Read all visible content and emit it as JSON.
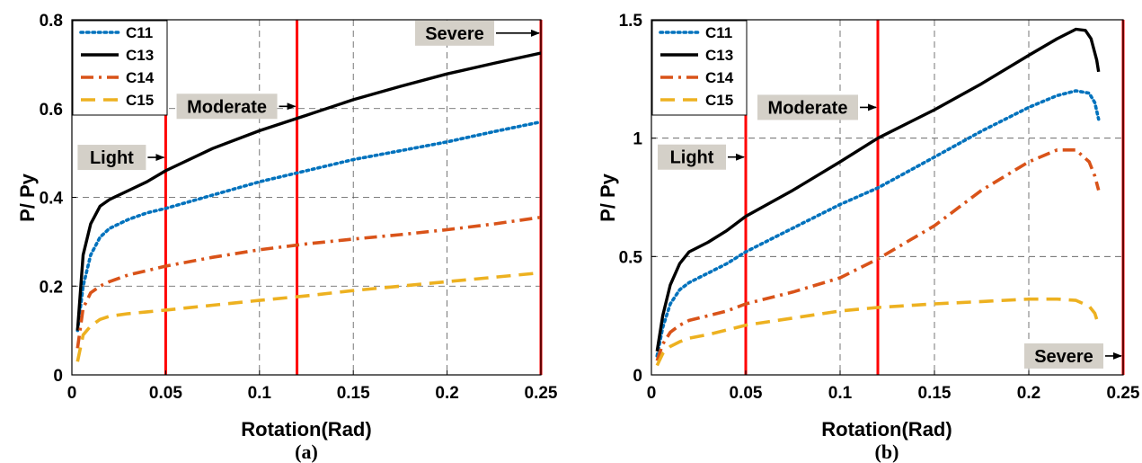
{
  "colors": {
    "C11": "#0072BD",
    "C13": "#000000",
    "C14": "#D95319",
    "C15": "#EDB120",
    "limit": "#FF0000",
    "annot_bg": "#D4D0C8",
    "grid": "#555555"
  },
  "chart_data": [
    {
      "type": "line",
      "caption": "(a)",
      "xlabel": "Rotation(Rad)",
      "ylabel": "P/ Py",
      "xlim": [
        0,
        0.25
      ],
      "ylim": [
        0,
        0.8
      ],
      "xticks": [
        0,
        0.05,
        0.1,
        0.15,
        0.2,
        0.25
      ],
      "xtick_labels": [
        "0",
        "0.05",
        "0.1",
        "0.15",
        "0.2",
        "0.25"
      ],
      "yticks": [
        0,
        0.2,
        0.4,
        0.6,
        0.8
      ],
      "ytick_labels": [
        "0",
        "0.2",
        "0.4",
        "0.6",
        "0.8"
      ],
      "grid": true,
      "legend": "top-left",
      "series": [
        {
          "name": "C11",
          "style": "dotted",
          "x": [
            0.003,
            0.006,
            0.01,
            0.015,
            0.02,
            0.03,
            0.04,
            0.05,
            0.075,
            0.1,
            0.125,
            0.15,
            0.175,
            0.2,
            0.225,
            0.25
          ],
          "y": [
            0.1,
            0.2,
            0.27,
            0.31,
            0.33,
            0.35,
            0.365,
            0.375,
            0.405,
            0.435,
            0.46,
            0.485,
            0.505,
            0.525,
            0.548,
            0.57
          ]
        },
        {
          "name": "C13",
          "style": "solid",
          "x": [
            0.003,
            0.006,
            0.01,
            0.015,
            0.02,
            0.03,
            0.04,
            0.05,
            0.075,
            0.1,
            0.125,
            0.15,
            0.175,
            0.2,
            0.225,
            0.25
          ],
          "y": [
            0.1,
            0.27,
            0.34,
            0.38,
            0.395,
            0.415,
            0.435,
            0.46,
            0.51,
            0.55,
            0.585,
            0.62,
            0.65,
            0.678,
            0.702,
            0.725
          ]
        },
        {
          "name": "C14",
          "style": "dashdot",
          "x": [
            0.003,
            0.006,
            0.01,
            0.015,
            0.02,
            0.03,
            0.04,
            0.05,
            0.075,
            0.1,
            0.125,
            0.15,
            0.175,
            0.2,
            0.225,
            0.25
          ],
          "y": [
            0.06,
            0.15,
            0.185,
            0.2,
            0.21,
            0.225,
            0.235,
            0.245,
            0.265,
            0.282,
            0.295,
            0.306,
            0.316,
            0.327,
            0.34,
            0.355
          ]
        },
        {
          "name": "C15",
          "style": "dashed",
          "x": [
            0.003,
            0.006,
            0.01,
            0.015,
            0.02,
            0.03,
            0.04,
            0.05,
            0.075,
            0.1,
            0.125,
            0.15,
            0.175,
            0.2,
            0.225,
            0.25
          ],
          "y": [
            0.03,
            0.09,
            0.11,
            0.125,
            0.132,
            0.138,
            0.142,
            0.146,
            0.157,
            0.168,
            0.178,
            0.19,
            0.2,
            0.21,
            0.22,
            0.23
          ]
        }
      ],
      "vlines": [
        0.05,
        0.12,
        0.25
      ],
      "annotations": [
        {
          "text": "Light",
          "x": 0.05,
          "y": 0.49
        },
        {
          "text": "Moderate",
          "x": 0.12,
          "y": 0.605
        },
        {
          "text": "Severe",
          "x": 0.25,
          "y": 0.77
        }
      ]
    },
    {
      "type": "line",
      "caption": "(b)",
      "xlabel": "Rotation(Rad)",
      "ylabel": "P/ Py",
      "xlim": [
        0,
        0.25
      ],
      "ylim": [
        0,
        1.5
      ],
      "xticks": [
        0,
        0.05,
        0.1,
        0.15,
        0.2,
        0.25
      ],
      "xtick_labels": [
        "0",
        "0.05",
        "0.1",
        "0.15",
        "0.2",
        "0.25"
      ],
      "yticks": [
        0,
        0.5,
        1,
        1.5
      ],
      "ytick_labels": [
        "0",
        "0.5",
        "1",
        "1.5"
      ],
      "grid": true,
      "legend": "top-left",
      "series": [
        {
          "name": "C11",
          "style": "dotted",
          "x": [
            0.003,
            0.006,
            0.01,
            0.015,
            0.02,
            0.03,
            0.04,
            0.05,
            0.075,
            0.1,
            0.12,
            0.15,
            0.175,
            0.2,
            0.215,
            0.225,
            0.232,
            0.235,
            0.237
          ],
          "y": [
            0.08,
            0.2,
            0.3,
            0.36,
            0.39,
            0.43,
            0.47,
            0.52,
            0.62,
            0.72,
            0.79,
            0.92,
            1.03,
            1.13,
            1.18,
            1.2,
            1.19,
            1.15,
            1.08
          ]
        },
        {
          "name": "C13",
          "style": "solid",
          "x": [
            0.003,
            0.006,
            0.01,
            0.015,
            0.02,
            0.03,
            0.04,
            0.05,
            0.075,
            0.1,
            0.12,
            0.15,
            0.175,
            0.2,
            0.215,
            0.225,
            0.23,
            0.233,
            0.236,
            0.237
          ],
          "y": [
            0.1,
            0.25,
            0.38,
            0.47,
            0.52,
            0.56,
            0.61,
            0.67,
            0.78,
            0.9,
            1.0,
            1.12,
            1.23,
            1.35,
            1.42,
            1.46,
            1.455,
            1.42,
            1.33,
            1.28
          ]
        },
        {
          "name": "C14",
          "style": "dashdot",
          "x": [
            0.003,
            0.006,
            0.01,
            0.015,
            0.02,
            0.03,
            0.04,
            0.05,
            0.075,
            0.1,
            0.12,
            0.15,
            0.175,
            0.2,
            0.215,
            0.225,
            0.232,
            0.235,
            0.237
          ],
          "y": [
            0.06,
            0.13,
            0.18,
            0.21,
            0.23,
            0.25,
            0.27,
            0.3,
            0.35,
            0.41,
            0.49,
            0.63,
            0.78,
            0.9,
            0.95,
            0.95,
            0.9,
            0.84,
            0.78
          ]
        },
        {
          "name": "C15",
          "style": "dashed",
          "x": [
            0.003,
            0.006,
            0.01,
            0.015,
            0.02,
            0.03,
            0.04,
            0.05,
            0.075,
            0.1,
            0.12,
            0.15,
            0.175,
            0.2,
            0.215,
            0.225,
            0.232,
            0.235,
            0.237
          ],
          "y": [
            0.04,
            0.09,
            0.12,
            0.14,
            0.155,
            0.17,
            0.19,
            0.21,
            0.24,
            0.27,
            0.285,
            0.3,
            0.31,
            0.32,
            0.32,
            0.315,
            0.29,
            0.26,
            0.21
          ]
        }
      ],
      "vlines": [
        0.05,
        0.12,
        0.25
      ],
      "annotations": [
        {
          "text": "Light",
          "x": 0.05,
          "y": 0.92
        },
        {
          "text": "Moderate",
          "x": 0.12,
          "y": 1.13
        },
        {
          "text": "Severe",
          "x": 0.25,
          "y": 0.08
        }
      ]
    }
  ]
}
